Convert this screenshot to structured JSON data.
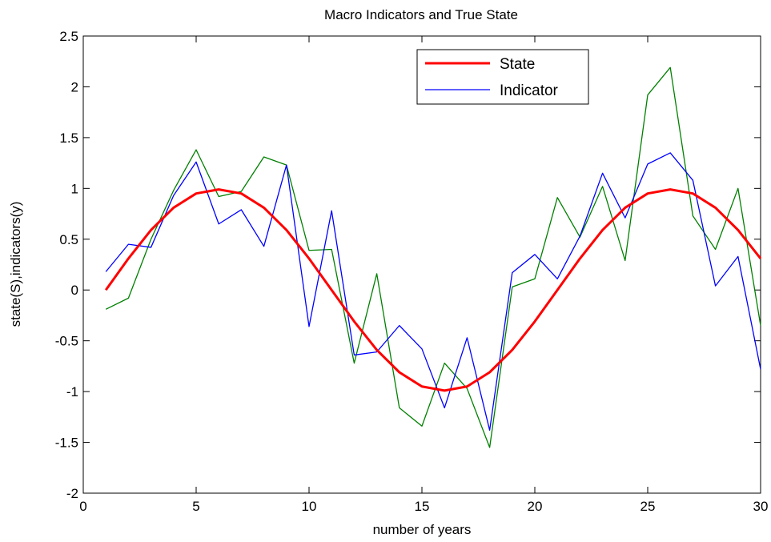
{
  "chart_data": {
    "type": "line",
    "title": "Macro Indicators and True State",
    "xlabel": "number of years",
    "ylabel": "state(S),indicators(y)",
    "xlim": [
      0,
      30
    ],
    "ylim": [
      -2,
      2.5
    ],
    "xticks": [
      0,
      5,
      10,
      15,
      20,
      25,
      30
    ],
    "yticks": [
      -2,
      -1.5,
      -1,
      -0.5,
      0,
      0.5,
      1,
      1.5,
      2,
      2.5
    ],
    "xtick_labels": [
      "0",
      "5",
      "10",
      "15",
      "20",
      "25",
      "30"
    ],
    "ytick_labels": [
      "-2",
      "-1.5",
      "-1",
      "-0.5",
      "0",
      "0.5",
      "1",
      "1.5",
      "2",
      "2.5"
    ],
    "grid": false,
    "legend_position": "top-right",
    "x": [
      1,
      2,
      3,
      4,
      5,
      6,
      7,
      8,
      9,
      10,
      11,
      12,
      13,
      14,
      15,
      16,
      17,
      18,
      19,
      20,
      21,
      22,
      23,
      24,
      25,
      26,
      27,
      28,
      29,
      30
    ],
    "series": [
      {
        "name": "State",
        "color": "#ff0000",
        "legend": true,
        "values": [
          0.0,
          0.31,
          0.59,
          0.81,
          0.95,
          0.99,
          0.95,
          0.81,
          0.59,
          0.31,
          0.0,
          -0.31,
          -0.59,
          -0.81,
          -0.95,
          -0.99,
          -0.95,
          -0.81,
          -0.59,
          -0.31,
          0.0,
          0.31,
          0.59,
          0.81,
          0.95,
          0.99,
          0.95,
          0.81,
          0.59,
          0.31
        ]
      },
      {
        "name": "Indicator",
        "color": "#0000ff",
        "legend": true,
        "values": [
          0.18,
          0.45,
          0.42,
          0.93,
          1.26,
          0.65,
          0.79,
          0.43,
          1.23,
          -0.36,
          0.78,
          -0.64,
          -0.61,
          -0.35,
          -0.58,
          -1.16,
          -0.47,
          -1.38,
          0.17,
          0.35,
          0.11,
          0.53,
          1.15,
          0.71,
          1.24,
          1.35,
          1.08,
          0.04,
          0.33,
          -0.78
        ]
      },
      {
        "color": "#008000",
        "legend": false,
        "values": [
          -0.19,
          -0.08,
          0.5,
          0.98,
          1.38,
          0.92,
          0.97,
          1.31,
          1.23,
          0.39,
          0.4,
          -0.72,
          0.16,
          -1.16,
          -1.34,
          -0.72,
          -0.97,
          -1.55,
          0.03,
          0.11,
          0.91,
          0.52,
          1.02,
          0.29,
          1.92,
          2.19,
          0.73,
          0.4,
          1.0,
          -0.35
        ]
      }
    ]
  }
}
